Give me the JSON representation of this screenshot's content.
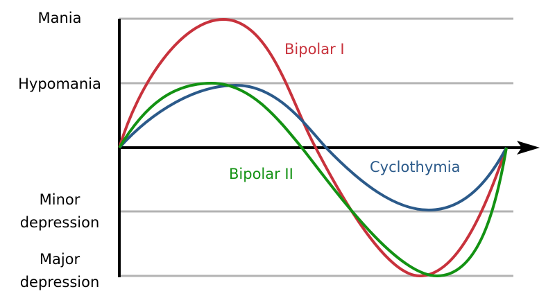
{
  "levels": {
    "mania": "Mania",
    "hypomania": "Hypomania",
    "minor_depression_1": "Minor",
    "minor_depression_2": "depression",
    "major_depression_1": "Major",
    "major_depression_2": "depression"
  },
  "series": {
    "bipolar_1": {
      "label": "Bipolar I",
      "color": "#c8323c"
    },
    "bipolar_2": {
      "label": "Bipolar II",
      "color": "#139213"
    },
    "cyclothymia": {
      "label": "Cyclothymia",
      "color": "#2b5a8a"
    }
  },
  "colors": {
    "gridline": "#b3b3b3",
    "axis": "#000000"
  }
}
